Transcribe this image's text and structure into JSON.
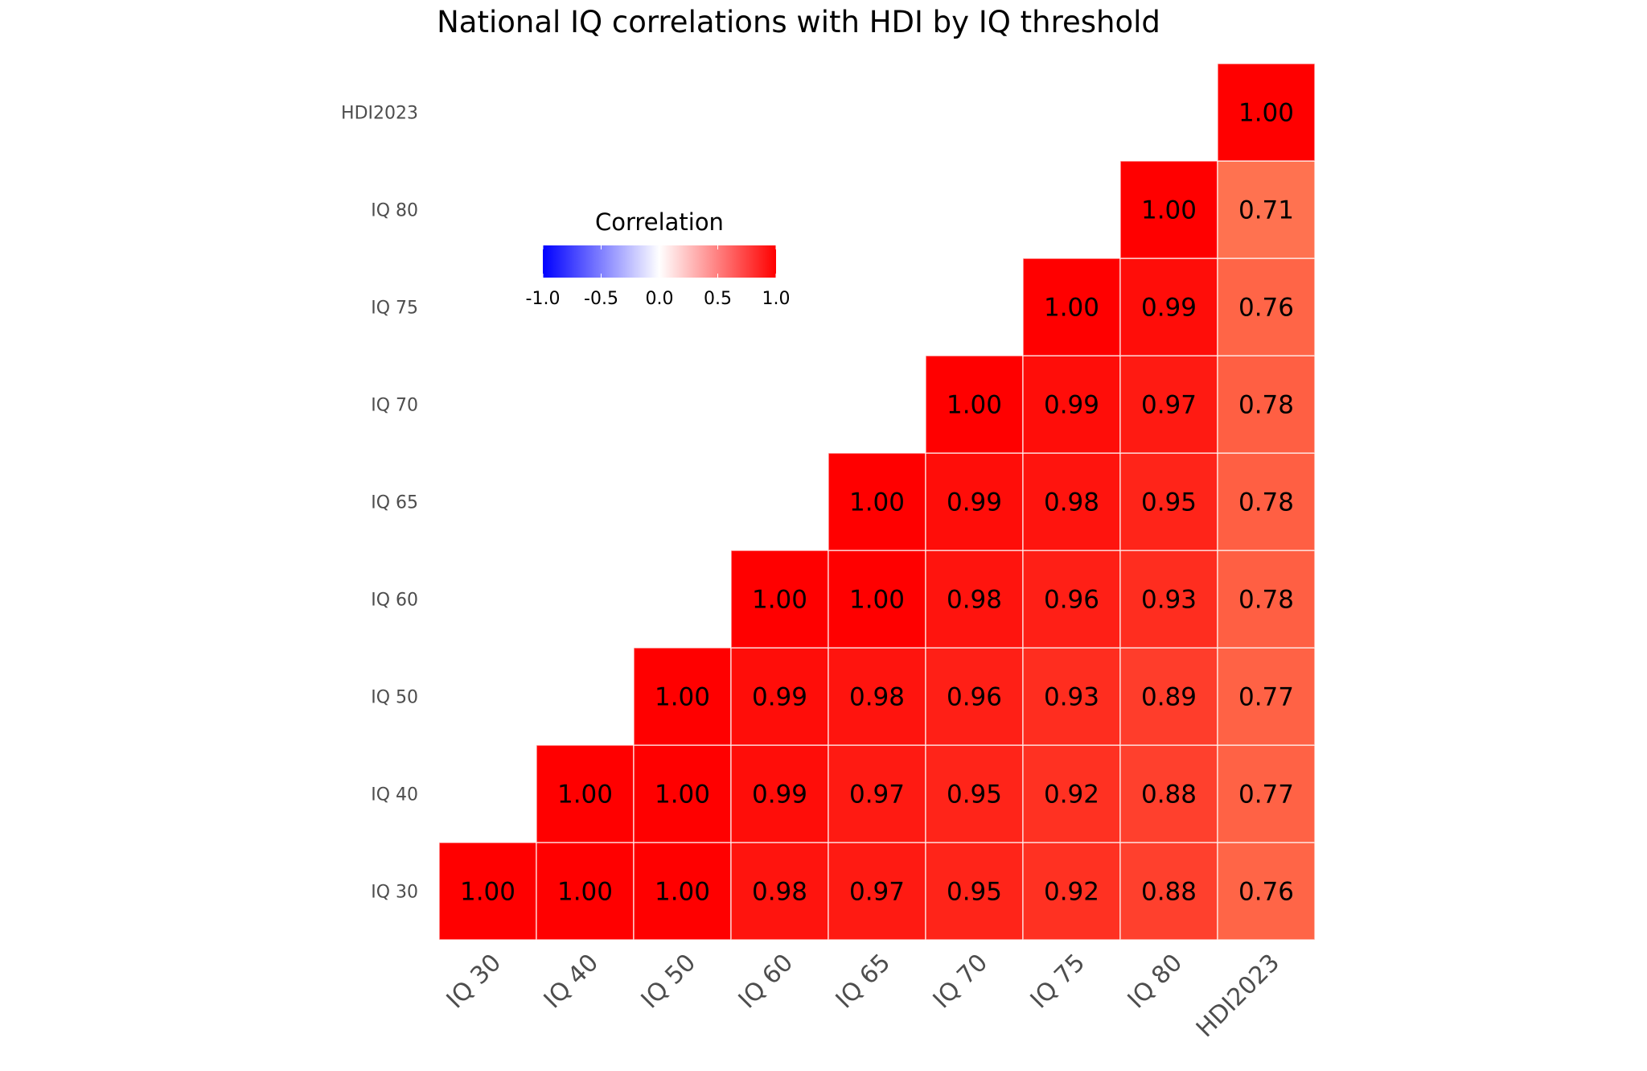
{
  "chart_data": {
    "type": "heatmap",
    "title": "National IQ correlations with HDI by IQ threshold",
    "xlabel": "",
    "ylabel": "",
    "x_categories": [
      "IQ 30",
      "IQ 40",
      "IQ 50",
      "IQ 60",
      "IQ 65",
      "IQ 70",
      "IQ 75",
      "IQ 80",
      "HDI2023"
    ],
    "y_categories": [
      "IQ 30",
      "IQ 40",
      "IQ 50",
      "IQ 60",
      "IQ 65",
      "IQ 70",
      "IQ 75",
      "IQ 80",
      "HDI2023"
    ],
    "values": [
      [
        1.0,
        1.0,
        1.0,
        0.98,
        0.97,
        0.95,
        0.92,
        0.88,
        0.76
      ],
      [
        null,
        1.0,
        1.0,
        0.99,
        0.97,
        0.95,
        0.92,
        0.88,
        0.77
      ],
      [
        null,
        null,
        1.0,
        0.99,
        0.98,
        0.96,
        0.93,
        0.89,
        0.77
      ],
      [
        null,
        null,
        null,
        1.0,
        1.0,
        0.98,
        0.96,
        0.93,
        0.78
      ],
      [
        null,
        null,
        null,
        null,
        1.0,
        0.99,
        0.98,
        0.95,
        0.78
      ],
      [
        null,
        null,
        null,
        null,
        null,
        1.0,
        0.99,
        0.97,
        0.78
      ],
      [
        null,
        null,
        null,
        null,
        null,
        null,
        1.0,
        0.99,
        0.76
      ],
      [
        null,
        null,
        null,
        null,
        null,
        null,
        null,
        1.0,
        0.71
      ],
      [
        null,
        null,
        null,
        null,
        null,
        null,
        null,
        null,
        1.0
      ]
    ],
    "legend": {
      "title": "Correlation",
      "ticks": [
        "-1.0",
        "-0.5",
        "0.0",
        "0.5",
        "1.0"
      ],
      "range": [
        -1,
        1
      ],
      "low_color": "#0000FF",
      "mid_color": "#FFFFFF",
      "high_color": "#FF0000",
      "placement": "inside-top-left"
    },
    "grid": false
  }
}
